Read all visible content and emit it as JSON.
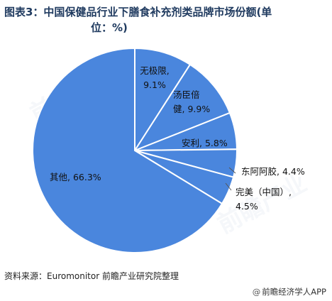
{
  "header": {
    "title_line1": "图表3：中国保健品行业下膳食补充剂类品牌市场份额(单",
    "title_line2": "位：%)"
  },
  "footer": {
    "source": "资料来源：Euromonitor 前瞻产业研究院整理",
    "brand_icon": "at-sign-icon",
    "brand": "前瞻经济学人APP"
  },
  "chart_data": {
    "type": "pie",
    "title": "图表3：中国保健品行业下膳食补充剂类品牌市场份额(单位：%)",
    "start": "12 o'clock, clockwise",
    "slices": [
      {
        "name": "无极限",
        "value": 9.1,
        "color": "#4a86dd",
        "label_lines": [
          "无极限,",
          "9.1%"
        ]
      },
      {
        "name": "汤臣倍健",
        "value": 9.9,
        "color": "#4a86dd",
        "label_lines": [
          "汤臣倍",
          "健, 9.9%"
        ]
      },
      {
        "name": "安利",
        "value": 5.8,
        "color": "#4a86dd",
        "label_lines": [
          "安利, 5.8%"
        ]
      },
      {
        "name": "东阿阿胶",
        "value": 4.4,
        "color": "#4a86dd",
        "label_lines": [
          "东阿阿胶, 4.4%"
        ]
      },
      {
        "name": "完美（中国）",
        "value": 4.5,
        "color": "#4a86dd",
        "label_lines": [
          "完美（中国）,",
          "4.5%"
        ]
      },
      {
        "name": "其他",
        "value": 66.3,
        "color": "#4a86dd",
        "label_lines": [
          "其他, 66.3%"
        ]
      }
    ],
    "slice_border_color": "#ffffff",
    "leader_line_color": "#555555"
  }
}
